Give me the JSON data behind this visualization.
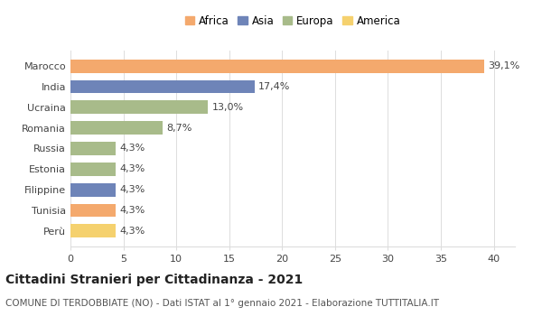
{
  "categories": [
    "Marocco",
    "India",
    "Ucraina",
    "Romania",
    "Russia",
    "Estonia",
    "Filippine",
    "Tunisia",
    "Perù"
  ],
  "values": [
    39.1,
    17.4,
    13.0,
    8.7,
    4.3,
    4.3,
    4.3,
    4.3,
    4.3
  ],
  "labels": [
    "39,1%",
    "17,4%",
    "13,0%",
    "8,7%",
    "4,3%",
    "4,3%",
    "4,3%",
    "4,3%",
    "4,3%"
  ],
  "colors": [
    "#F4A96D",
    "#6E84B8",
    "#A8BB8A",
    "#A8BB8A",
    "#A8BB8A",
    "#A8BB8A",
    "#6E84B8",
    "#F4A96D",
    "#F5D16E"
  ],
  "legend_labels": [
    "Africa",
    "Asia",
    "Europa",
    "America"
  ],
  "legend_colors": [
    "#F4A96D",
    "#6E84B8",
    "#A8BB8A",
    "#F5D16E"
  ],
  "xlim": [
    0,
    42
  ],
  "xticks": [
    0,
    5,
    10,
    15,
    20,
    25,
    30,
    35,
    40
  ],
  "title": "Cittadini Stranieri per Cittadinanza - 2021",
  "subtitle": "COMUNE DI TERDOBBIATE (NO) - Dati ISTAT al 1° gennaio 2021 - Elaborazione TUTTITALIA.IT",
  "background_color": "#ffffff",
  "grid_color": "#dddddd",
  "bar_height": 0.65,
  "label_fontsize": 8,
  "title_fontsize": 10,
  "subtitle_fontsize": 7.5,
  "ytick_fontsize": 8,
  "xtick_fontsize": 8,
  "legend_fontsize": 8.5
}
